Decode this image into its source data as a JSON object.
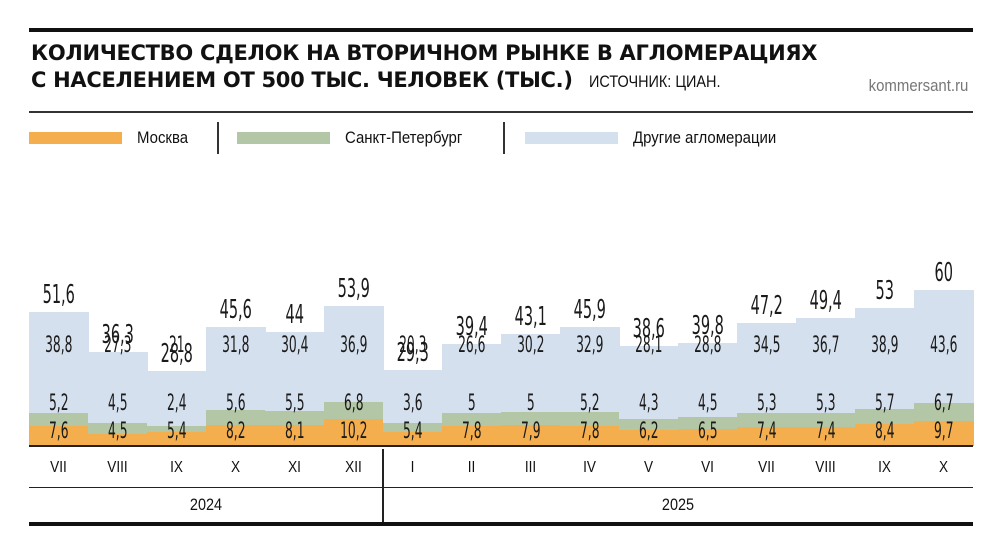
{
  "title": {
    "line1": "КОЛИЧЕСТВО СДЕЛОК НА ВТОРИЧНОМ РЫНКЕ В АГЛОМЕРАЦИЯХ",
    "line2": "С НАСЕЛЕНИЕМ ОТ 500 ТЫС. ЧЕЛОВЕК (ТЫС.)",
    "source": "ИСТОЧНИК: ЦИАН.",
    "site": "kommersant.ru"
  },
  "legend": [
    {
      "label": "Москва",
      "color": "#F5AE4E"
    },
    {
      "label": "Санкт-Петербург",
      "color": "#B3C7A6"
    },
    {
      "label": "Другие агломерации",
      "color": "#D5E0EE"
    }
  ],
  "years": [
    {
      "label": "2024"
    },
    {
      "label": "2025"
    }
  ],
  "chart_data": {
    "type": "bar",
    "stacked": true,
    "title": "Количество сделок на вторичном рынке в агломерациях с населением от 500 тыс. человек (тыс.)",
    "source": "Источник: ЦИАН",
    "xlabel": "",
    "ylabel": "тыс.",
    "ylim": [
      0,
      60
    ],
    "grid": false,
    "legend_position": "top",
    "categories": [
      "VII 2024",
      "VIII 2024",
      "IX 2024",
      "X 2024",
      "XI 2024",
      "XII 2024",
      "I 2025",
      "II 2025",
      "III 2025",
      "IV 2025",
      "V 2025",
      "VI 2025",
      "VII 2025",
      "VIII 2025",
      "IX 2025",
      "X 2025"
    ],
    "month_labels": [
      "VII",
      "VIII",
      "IX",
      "X",
      "XI",
      "XII",
      "I",
      "II",
      "III",
      "IV",
      "V",
      "VI",
      "VII",
      "VIII",
      "IX",
      "X"
    ],
    "series": [
      {
        "name": "Москва",
        "color": "#F5AE4E",
        "values": [
          "7,6",
          "4,5",
          "5,4",
          "8,2",
          "8,1",
          "10,2",
          "5,4",
          "7,8",
          "7,9",
          "7,8",
          "6,2",
          "6,5",
          "7,4",
          "7,4",
          "8,4",
          "9,7"
        ]
      },
      {
        "name": "Санкт-Петербург",
        "color": "#B3C7A6",
        "values": [
          "5,2",
          "4,5",
          "2,4",
          "5,6",
          "5,5",
          "6,8",
          "3,6",
          "5",
          "5",
          "5,2",
          "4,3",
          "4,5",
          "5,3",
          "5,3",
          "5,7",
          "6,7"
        ]
      },
      {
        "name": "Другие агломерации",
        "color": "#D5E0EE",
        "values": [
          "38,8",
          "27,3",
          "21",
          "31,8",
          "30,4",
          "36,9",
          "20,3",
          "26,6",
          "30,2",
          "32,9",
          "28,1",
          "28,8",
          "34,5",
          "36,7",
          "38,9",
          "43,6"
        ]
      }
    ],
    "totals": [
      "51,6",
      "36,3",
      "28,8",
      "45,6",
      "44",
      "53,9",
      "29,3",
      "39,4",
      "43,1",
      "45,9",
      "38,6",
      "39,8",
      "47,2",
      "49,4",
      "53",
      "60"
    ],
    "numeric": {
      "moscow": [
        7.6,
        4.5,
        5.4,
        8.2,
        8.1,
        10.2,
        5.4,
        7.8,
        7.9,
        7.8,
        6.2,
        6.5,
        7.4,
        7.4,
        8.4,
        9.7
      ],
      "spb": [
        5.2,
        4.5,
        2.4,
        5.6,
        5.5,
        6.8,
        3.6,
        5,
        5,
        5.2,
        4.3,
        4.5,
        5.3,
        5.3,
        5.7,
        6.7
      ],
      "other": [
        38.8,
        27.3,
        21,
        31.8,
        30.4,
        36.9,
        20.3,
        26.6,
        30.2,
        32.9,
        28.1,
        28.8,
        34.5,
        36.7,
        38.9,
        43.6
      ],
      "total": [
        51.6,
        36.3,
        28.8,
        45.6,
        44,
        53.9,
        29.3,
        39.4,
        43.1,
        45.9,
        38.6,
        39.8,
        47.2,
        49.4,
        53,
        60
      ]
    }
  }
}
